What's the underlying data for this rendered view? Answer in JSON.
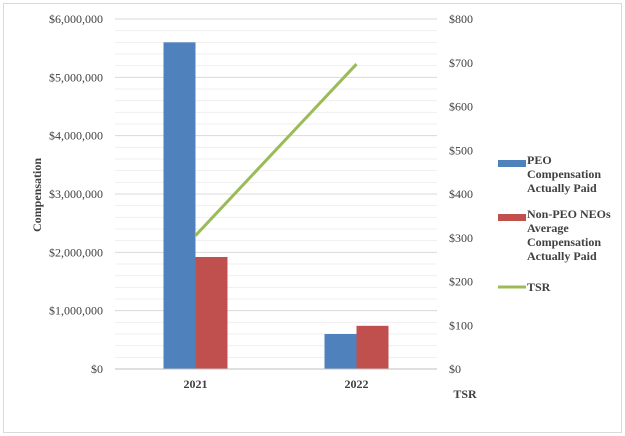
{
  "chart_data": {
    "type": "bar",
    "categories": [
      "2021",
      "2022"
    ],
    "series": [
      {
        "name": "PEO Compensation Actually Paid",
        "kind": "bar",
        "axis": "left",
        "color": "#4f81bd",
        "values": [
          5600000,
          600000
        ]
      },
      {
        "name": "Non-PEO NEOs Average Compensation Actually Paid",
        "kind": "bar",
        "axis": "left",
        "color": "#c0504d",
        "values": [
          1920000,
          740000
        ]
      },
      {
        "name": "TSR",
        "kind": "line",
        "axis": "right",
        "color": "#9bbb59",
        "values": [
          305,
          697
        ]
      }
    ],
    "ylabel": "Compensation",
    "y2label": "TSR",
    "ylim": [
      0,
      6000000
    ],
    "y2lim": [
      0,
      800
    ],
    "yticks": [
      "$0",
      "$1,000,000",
      "$2,000,000",
      "$3,000,000",
      "$4,000,000",
      "$5,000,000",
      "$6,000,000"
    ],
    "y2ticks": [
      "$0",
      "$100",
      "$200",
      "$300",
      "$400",
      "$500",
      "$600",
      "$700",
      "$800"
    ],
    "legend_lines": [
      [
        "PEO",
        "Compensation",
        "Actually Paid"
      ],
      [
        "Non-PEO NEOs",
        "Average",
        "Compensation",
        "Actually Paid"
      ],
      [
        "TSR"
      ]
    ],
    "grid": true,
    "legend_position": "right"
  }
}
